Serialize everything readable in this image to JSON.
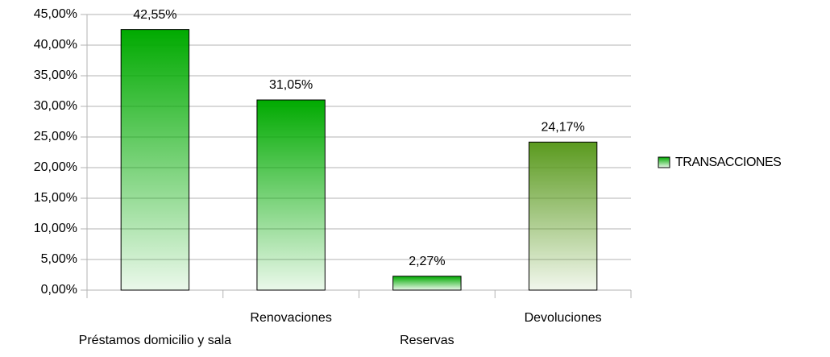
{
  "chart_data": {
    "type": "bar",
    "categories": [
      "Préstamos domicilio y sala",
      "Renovaciones",
      "Reservas",
      "Devoluciones"
    ],
    "series": [
      {
        "name": "TRANSACCIONES",
        "color": "#00aa00",
        "bar_colors": [
          "#00aa00",
          "#00aa00",
          "#00aa00",
          "#5a9a1e"
        ],
        "values": [
          42.55,
          31.05,
          2.27,
          24.17
        ],
        "value_labels": [
          "42,55%",
          "31,05%",
          "2,27%",
          "24,17%"
        ]
      }
    ],
    "ylim": [
      0,
      45
    ],
    "yticks": [
      {
        "value": 0,
        "label": "0,00%"
      },
      {
        "value": 5,
        "label": "5,00%"
      },
      {
        "value": 10,
        "label": "10,00%"
      },
      {
        "value": 15,
        "label": "15,00%"
      },
      {
        "value": 20,
        "label": "20,00%"
      },
      {
        "value": 25,
        "label": "25,00%"
      },
      {
        "value": 30,
        "label": "30,00%"
      },
      {
        "value": 35,
        "label": "35,00%"
      },
      {
        "value": 40,
        "label": "40,00%"
      },
      {
        "value": 45,
        "label": "45,00%"
      }
    ],
    "grid": true,
    "legend": "right"
  }
}
